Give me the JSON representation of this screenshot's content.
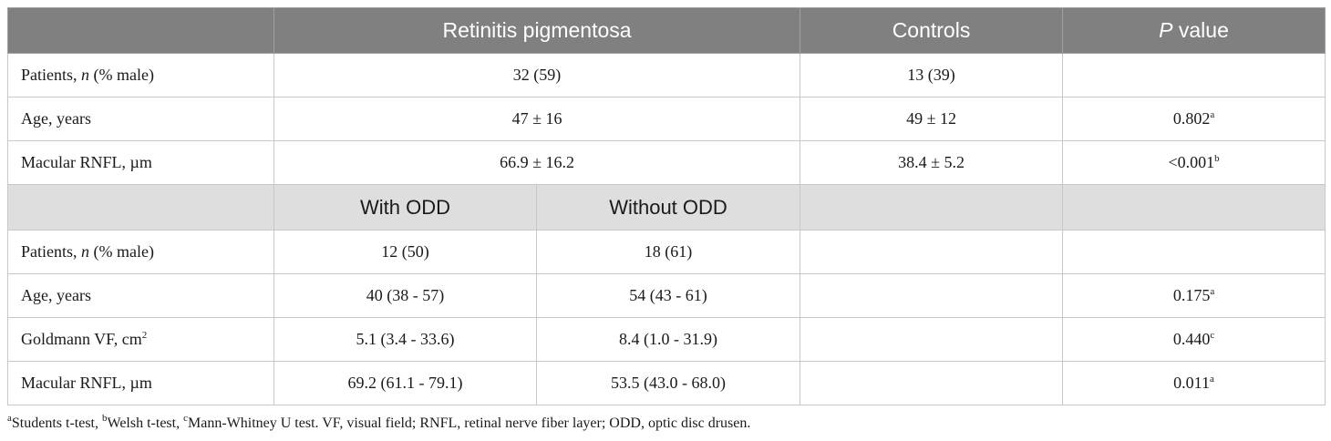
{
  "header": {
    "col_rp": "Retinitis pigmentosa",
    "col_controls": "Controls",
    "col_p_italic": "P",
    "col_p_rest": " value"
  },
  "rows_top": [
    {
      "label_pre": "Patients, ",
      "label_it": "n",
      "label_post": " (% male)",
      "label_sup": "",
      "rp": "32 (59)",
      "controls": "13 (39)",
      "p": "",
      "p_sup": ""
    },
    {
      "label_pre": "Age, years",
      "label_it": "",
      "label_post": "",
      "label_sup": "",
      "rp": "47 ± 16",
      "controls": "49 ± 12",
      "p": "0.802",
      "p_sup": "a"
    },
    {
      "label_pre": "Macular RNFL, µm",
      "label_it": "",
      "label_post": "",
      "label_sup": "",
      "rp": "66.9 ± 16.2",
      "controls": "38.4 ± 5.2",
      "p": "<0.001",
      "p_sup": "b"
    }
  ],
  "subheader": {
    "with_odd": "With ODD",
    "without_odd": "Without ODD"
  },
  "rows_bottom": [
    {
      "label_pre": "Patients, ",
      "label_it": "n",
      "label_post": " (% male)",
      "label_sup": "",
      "with": "12 (50)",
      "without": "18 (61)",
      "p": "",
      "p_sup": ""
    },
    {
      "label_pre": "Age, years",
      "label_it": "",
      "label_post": "",
      "label_sup": "",
      "with": "40 (38 - 57)",
      "without": "54 (43 - 61)",
      "p": "0.175",
      "p_sup": "a"
    },
    {
      "label_pre": "Goldmann VF, cm",
      "label_it": "",
      "label_post": "",
      "label_sup": "2",
      "with": "5.1 (3.4 - 33.6)",
      "without": "8.4 (1.0 - 31.9)",
      "p": "0.440",
      "p_sup": "c"
    },
    {
      "label_pre": "Macular RNFL, µm",
      "label_it": "",
      "label_post": "",
      "label_sup": "",
      "with": "69.2 (61.1 - 79.1)",
      "without": "53.5 (43.0 - 68.0)",
      "p": "0.011",
      "p_sup": "a"
    }
  ],
  "footnote": {
    "a_sup": "a",
    "a_text": "Students t-test, ",
    "b_sup": "b",
    "b_text": "Welsh t-test, ",
    "c_sup": "c",
    "c_text": "Mann-Whitney U test. VF, visual field; RNFL, retinal nerve fiber layer; ODD, optic disc drusen."
  }
}
